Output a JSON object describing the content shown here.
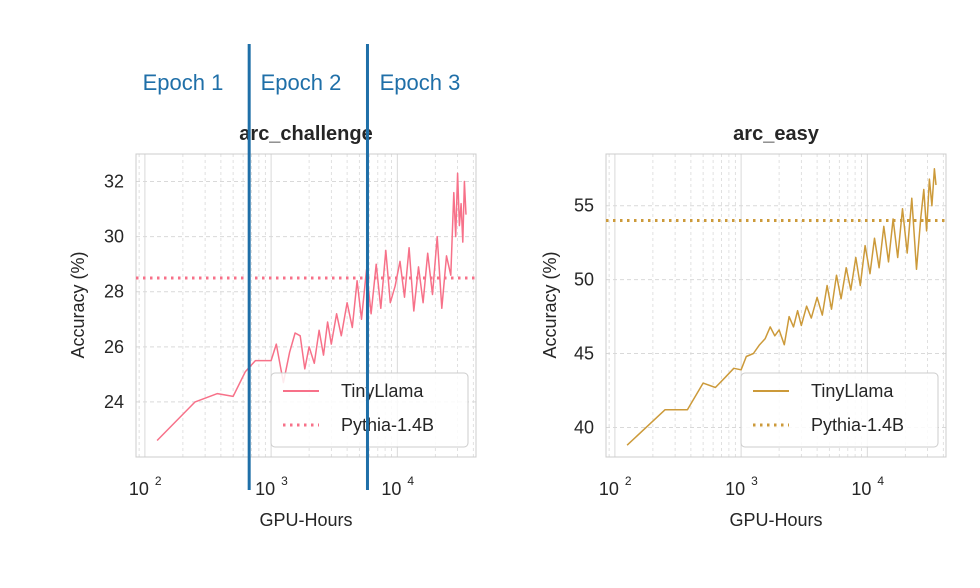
{
  "epoch_labels": [
    "Epoch 1",
    "Epoch 2",
    "Epoch 3"
  ],
  "epoch_boundaries_gpu_hours": [
    670,
    5800
  ],
  "colors": {
    "epoch_annotation": "#1f6fa8",
    "tinyllama_challenge": "#f77189",
    "tinyllama_easy": "#cc9a3a",
    "grid": "#d9d9d9",
    "frame": "#cccccc"
  },
  "chart_data": [
    {
      "type": "line",
      "title": "arc_challenge",
      "xlabel": "GPU-Hours",
      "ylabel": "Accuracy (%)",
      "xscale": "log",
      "xlim": [
        85,
        42000
      ],
      "ylim": [
        22.0,
        33.0
      ],
      "xticks": [
        100,
        1000,
        10000
      ],
      "xtick_labels": [
        {
          "base": "10",
          "exp": "2"
        },
        {
          "base": "10",
          "exp": "3"
        },
        {
          "base": "10",
          "exp": "4"
        }
      ],
      "yticks": [
        24,
        26,
        28,
        30,
        32
      ],
      "ytick_labels": [
        "24",
        "26",
        "28",
        "30",
        "32"
      ],
      "grid": true,
      "legend": "lower-right",
      "reference_line": {
        "name": "Pythia-1.4B",
        "value": 28.5,
        "style": "dotted"
      },
      "series": [
        {
          "name": "TinyLlama",
          "x": [
            125,
            250,
            375,
            500,
            625,
            750,
            1000,
            1100,
            1250,
            1400,
            1550,
            1700,
            1850,
            2000,
            2200,
            2400,
            2600,
            2800,
            3000,
            3300,
            3600,
            4000,
            4400,
            4800,
            5200,
            5700,
            6200,
            6800,
            7400,
            8100,
            8800,
            9600,
            10500,
            11400,
            12400,
            13500,
            14700,
            16000,
            17400,
            19000,
            20700,
            22500,
            24500,
            26500,
            28000,
            29000,
            30000,
            31000,
            32000,
            33000,
            34000,
            35000
          ],
          "values": [
            22.6,
            24.0,
            24.3,
            24.2,
            25.1,
            25.5,
            25.5,
            26.1,
            24.7,
            25.8,
            26.5,
            26.4,
            25.2,
            26.0,
            25.4,
            26.6,
            25.7,
            26.9,
            26.1,
            27.2,
            26.4,
            27.6,
            26.7,
            28.4,
            27.0,
            28.8,
            27.2,
            29.0,
            27.4,
            29.5,
            27.6,
            28.2,
            29.1,
            27.8,
            29.6,
            27.3,
            28.9,
            27.6,
            29.4,
            27.9,
            30.0,
            27.4,
            29.3,
            28.6,
            31.6,
            30.0,
            32.3,
            30.4,
            31.2,
            29.8,
            32.0,
            30.8
          ]
        }
      ]
    },
    {
      "type": "line",
      "title": "arc_easy",
      "xlabel": "GPU-Hours",
      "ylabel": "Accuracy (%)",
      "xscale": "log",
      "xlim": [
        85,
        42000
      ],
      "ylim": [
        38.0,
        58.5
      ],
      "xticks": [
        100,
        1000,
        10000
      ],
      "xtick_labels": [
        {
          "base": "10",
          "exp": "2"
        },
        {
          "base": "10",
          "exp": "3"
        },
        {
          "base": "10",
          "exp": "4"
        }
      ],
      "yticks": [
        40,
        45,
        50,
        55
      ],
      "ytick_labels": [
        "40",
        "45",
        "50",
        "55"
      ],
      "grid": true,
      "legend": "lower-right",
      "reference_line": {
        "name": "Pythia-1.4B",
        "value": 54.0,
        "style": "dotted"
      },
      "series": [
        {
          "name": "TinyLlama",
          "x": [
            125,
            250,
            375,
            500,
            625,
            750,
            875,
            1000,
            1100,
            1250,
            1400,
            1550,
            1700,
            1850,
            2000,
            2200,
            2400,
            2600,
            2800,
            3000,
            3300,
            3600,
            4000,
            4400,
            4800,
            5200,
            5700,
            6200,
            6800,
            7400,
            8100,
            8800,
            9600,
            10500,
            11400,
            12400,
            13500,
            14700,
            16000,
            17400,
            19000,
            20700,
            22500,
            24500,
            26500,
            28000,
            29500,
            31000,
            32500,
            34000,
            35000
          ],
          "values": [
            38.8,
            41.2,
            41.2,
            43.0,
            42.7,
            43.4,
            44.0,
            43.9,
            44.8,
            45.0,
            45.6,
            46.0,
            46.8,
            46.2,
            46.6,
            45.6,
            47.5,
            46.8,
            47.9,
            46.9,
            48.2,
            47.4,
            48.8,
            47.6,
            49.6,
            48.0,
            50.3,
            48.7,
            50.8,
            49.3,
            51.5,
            49.6,
            52.3,
            50.4,
            52.8,
            50.8,
            53.6,
            51.2,
            54.1,
            51.5,
            54.8,
            51.8,
            55.5,
            50.7,
            54.2,
            56.1,
            53.3,
            56.8,
            55.0,
            57.5,
            56.4
          ]
        }
      ]
    }
  ]
}
